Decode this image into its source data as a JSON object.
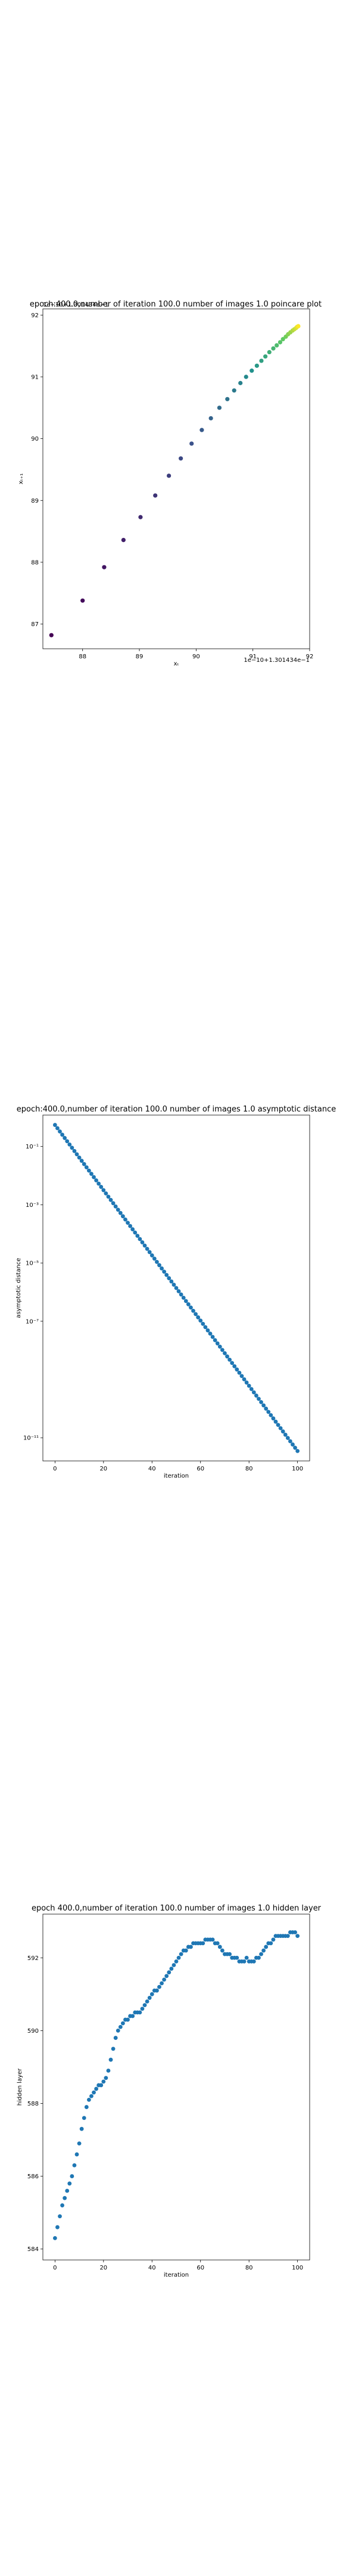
{
  "figure_1": {
    "title": "epoch:400.0,number of iteration 100.0 number of images 1.0 poincare plot",
    "xlabel": "xₜ",
    "ylabel": "xₜ₊₁",
    "x_offset_text": "1e−10+1.301434e−1",
    "y_offset_text": "1e−10+1.301434e−1"
  },
  "figure_2": {
    "title": "epoch:400.0,number of iteration 100.0  number of images 1.0 asymptotic distance",
    "xlabel": "iteration",
    "ylabel": "asymptotic distance"
  },
  "figure_3": {
    "title": "epoch 400.0,number of iteration 100.0  number of images 1.0 hidden layer",
    "xlabel": "iteration",
    "ylabel": "hidden layer"
  },
  "chart_data": [
    {
      "type": "scatter",
      "title": "epoch:400.0,number of iteration 100.0 number of images 1.0 poincare plot",
      "xlabel": "xₜ",
      "ylabel": "xₜ₊₁",
      "x_offset": "1e−10+1.301434e−1",
      "y_offset": "1e−10+1.301434e−1",
      "xlim": [
        87.3,
        92.0
      ],
      "ylim": [
        86.6,
        92.1
      ],
      "xticks": [
        "88",
        "89",
        "90",
        "91",
        "92"
      ],
      "yticks": [
        "87",
        "88",
        "89",
        "90",
        "91",
        "92"
      ],
      "colormap": "viridis",
      "grid": false,
      "x": [
        87.45,
        88.0,
        88.38,
        88.72,
        89.02,
        89.28,
        89.52,
        89.73,
        89.92,
        90.1,
        90.26,
        90.41,
        90.55,
        90.67,
        90.78,
        90.88,
        90.98,
        91.07,
        91.15,
        91.22,
        91.29,
        91.36,
        91.42,
        91.48,
        91.53,
        91.58,
        91.62,
        91.66,
        91.7,
        91.73,
        91.76,
        91.78,
        91.8
      ],
      "y": [
        86.82,
        87.38,
        87.92,
        88.36,
        88.73,
        89.08,
        89.4,
        89.68,
        89.92,
        90.14,
        90.33,
        90.5,
        90.64,
        90.78,
        90.9,
        91.0,
        91.1,
        91.18,
        91.26,
        91.33,
        91.4,
        91.46,
        91.51,
        91.56,
        91.61,
        91.65,
        91.69,
        91.72,
        91.75,
        91.77,
        91.79,
        91.81,
        91.82
      ]
    },
    {
      "type": "scatter",
      "title": "epoch:400.0,number of iteration 100.0  number of images 1.0 asymptotic distance",
      "xlabel": "iteration",
      "ylabel": "asymptotic distance",
      "yscale": "log",
      "xlim": [
        -5,
        105
      ],
      "ylim": [
        1.6e-12,
        1.2
      ],
      "xticks": [
        "0",
        "20",
        "40",
        "60",
        "80",
        "100"
      ],
      "yticks": [
        "10⁻¹",
        "10⁻³",
        "10⁻⁵",
        "10⁻⁷",
        "10⁻¹¹"
      ],
      "color": "#1f77b4",
      "grid": false,
      "points": [
        {
          "iteration": 0,
          "value": 0.55
        },
        {
          "iteration": 100,
          "value": 3.5e-12
        }
      ]
    },
    {
      "type": "scatter",
      "title": "epoch 400.0,number of iteration 100.0  number of images 1.0 hidden layer",
      "xlabel": "iteration",
      "ylabel": "hidden layer",
      "xlim": [
        -5,
        105
      ],
      "ylim": [
        583.7,
        593.2
      ],
      "xticks": [
        "0",
        "20",
        "40",
        "60",
        "80",
        "100"
      ],
      "yticks": [
        "584",
        "586",
        "588",
        "590",
        "592"
      ],
      "color": "#1f77b4",
      "grid": false,
      "values": [
        584.3,
        584.6,
        584.9,
        585.2,
        585.4,
        585.6,
        585.8,
        586.0,
        586.3,
        586.6,
        586.9,
        587.3,
        587.6,
        587.9,
        588.1,
        588.2,
        588.3,
        588.4,
        588.5,
        588.5,
        588.6,
        588.7,
        588.9,
        589.2,
        589.5,
        589.8,
        590.0,
        590.1,
        590.2,
        590.3,
        590.3,
        590.4,
        590.4,
        590.5,
        590.5,
        590.5,
        590.6,
        590.7,
        590.8,
        590.9,
        591.0,
        591.1,
        591.1,
        591.2,
        591.3,
        591.4,
        591.5,
        591.6,
        591.7,
        591.8,
        591.9,
        592.0,
        592.1,
        592.2,
        592.2,
        592.3,
        592.3,
        592.4,
        592.4,
        592.4,
        592.4,
        592.4,
        592.5,
        592.5,
        592.5,
        592.5,
        592.4,
        592.4,
        592.3,
        592.2,
        592.1,
        592.1,
        592.1,
        592.0,
        592.0,
        592.0,
        591.9,
        591.9,
        591.9,
        592.0,
        591.9,
        591.9,
        591.9,
        592.0,
        592.0,
        592.1,
        592.2,
        592.3,
        592.4,
        592.4,
        592.5,
        592.6,
        592.6,
        592.6,
        592.6,
        592.6,
        592.6,
        592.7,
        592.7,
        592.7,
        592.6
      ]
    }
  ]
}
